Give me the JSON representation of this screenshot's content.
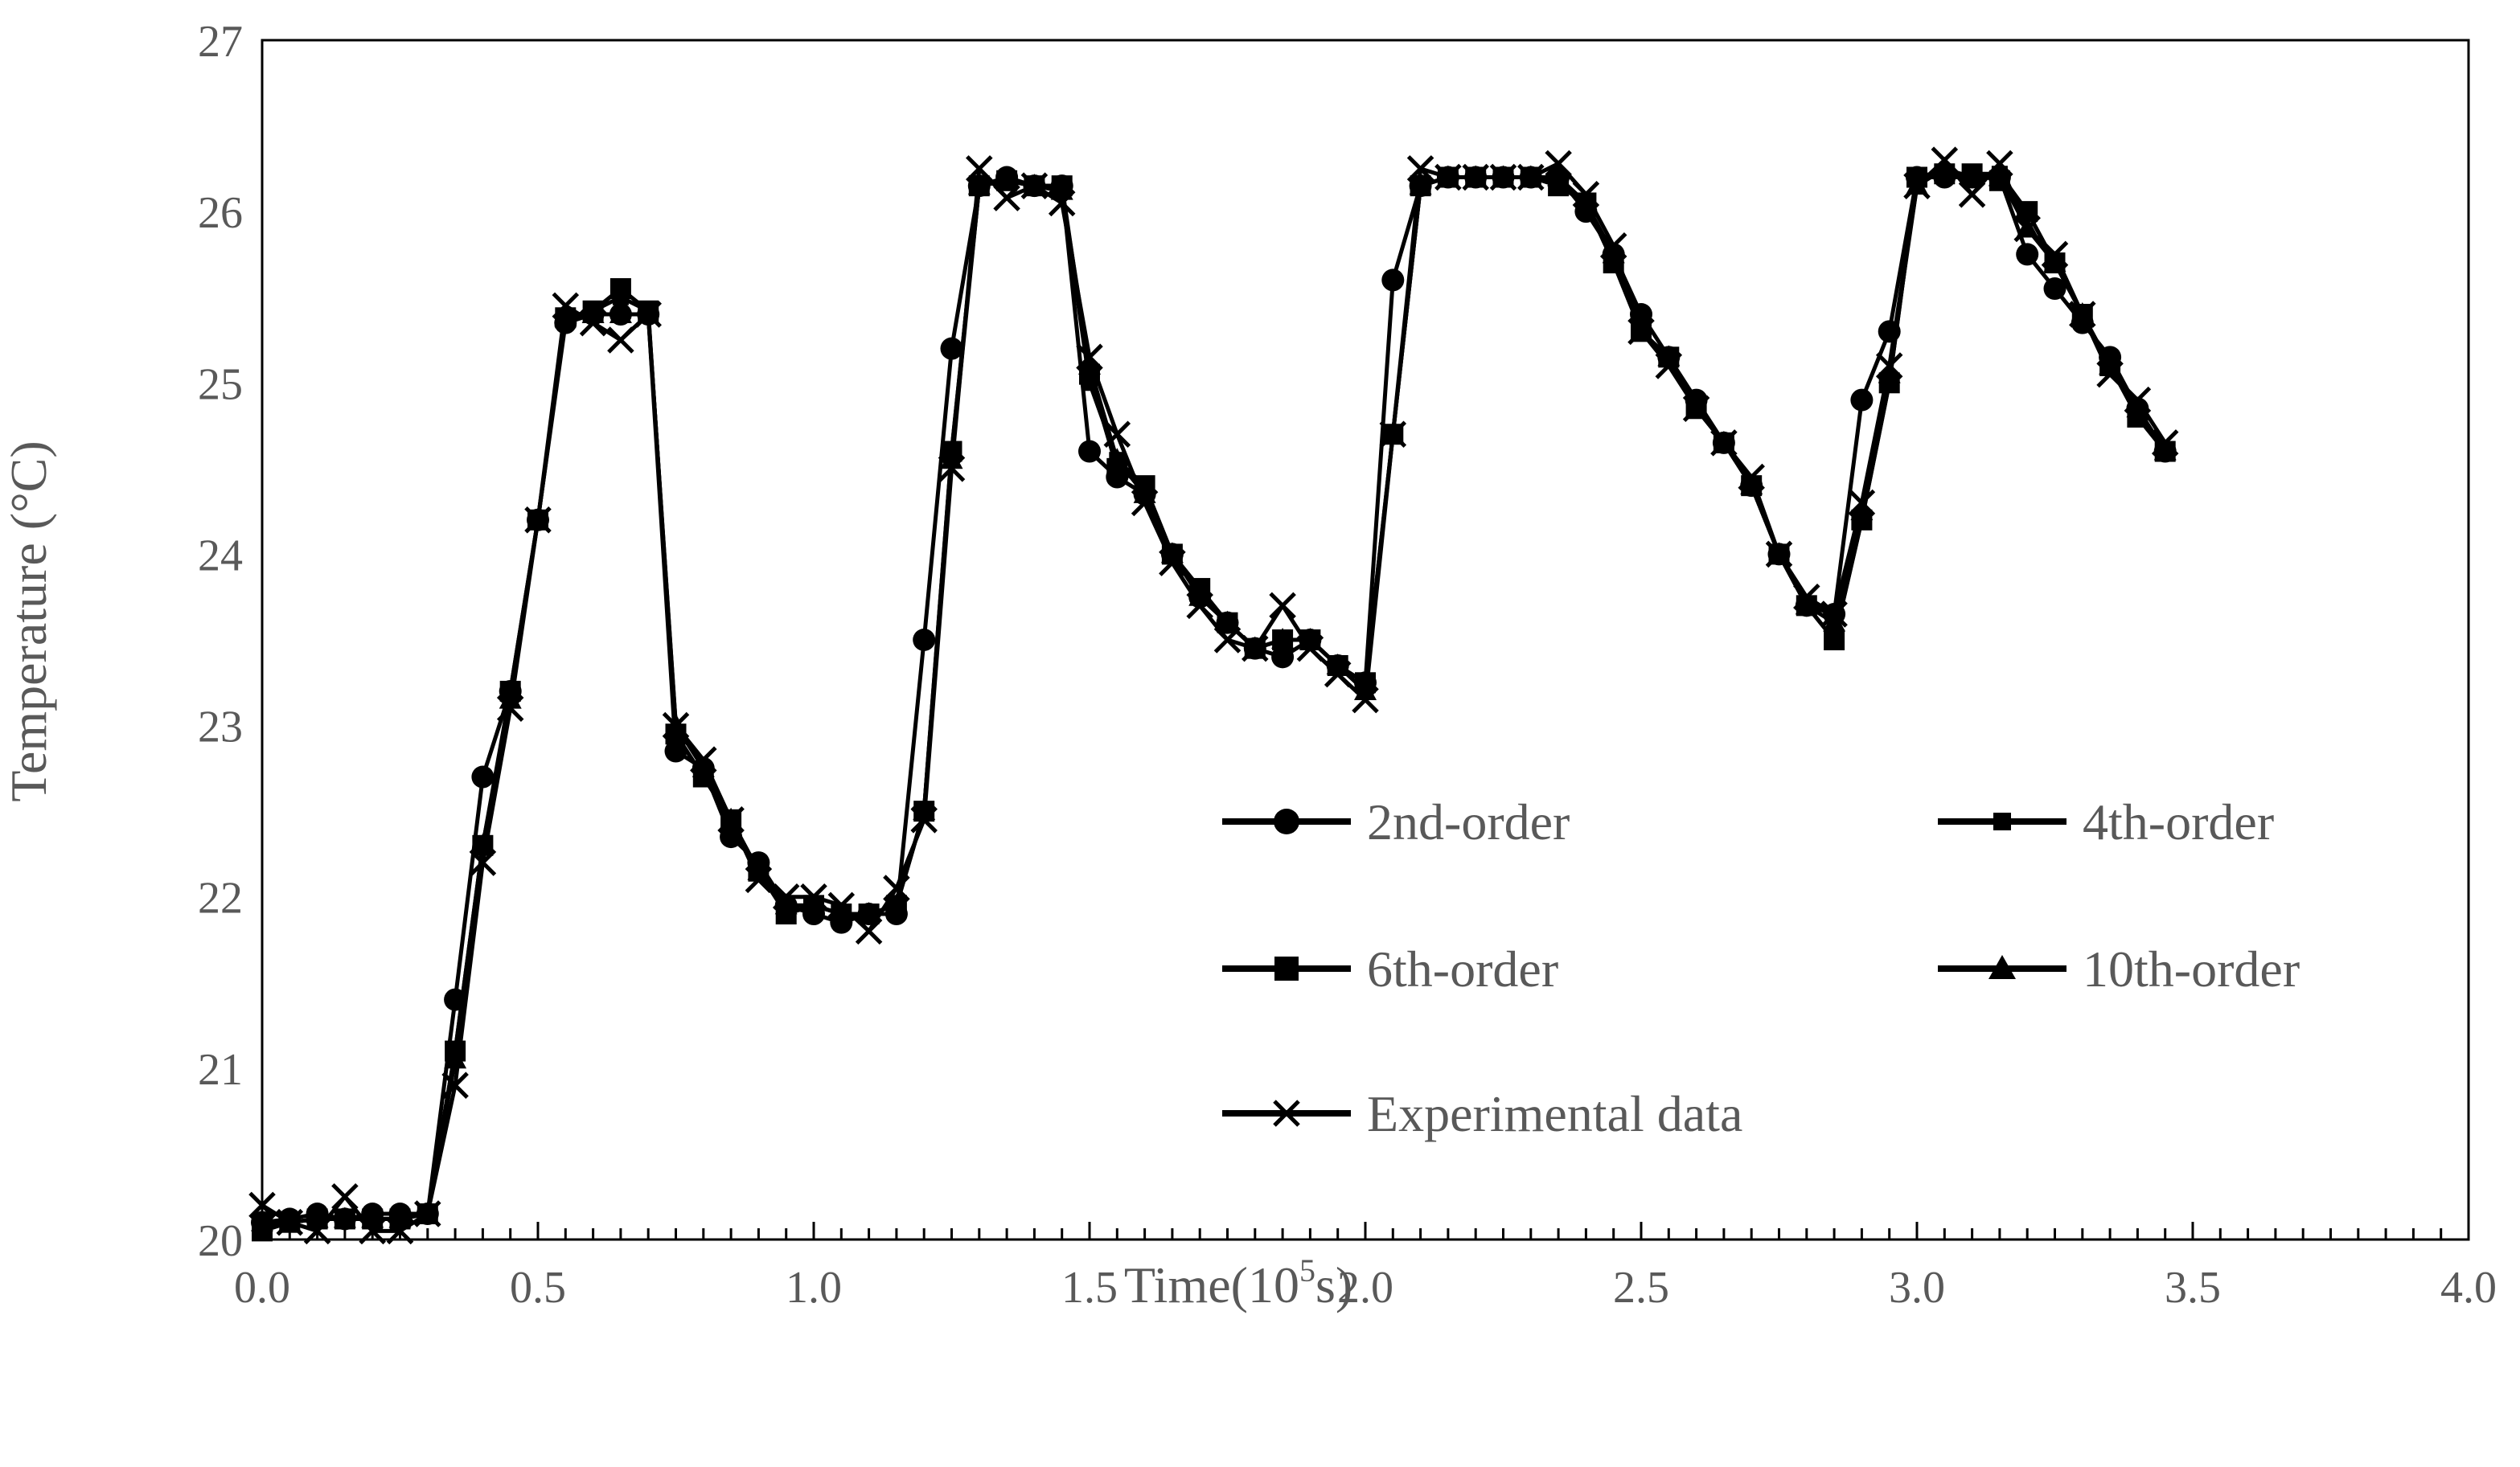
{
  "chart_data": {
    "type": "line",
    "title": "",
    "xlabel": "Time(10",
    "xlabel_sup": "5",
    "xlabel_suffix": "s)",
    "ylabel": "Temperature (°C)",
    "xlim": [
      0.0,
      4.0
    ],
    "ylim": [
      20,
      27
    ],
    "x_ticks": [
      "0.0",
      "0.5",
      "1.0",
      "1.5",
      "2.0",
      "2.5",
      "3.0",
      "3.5",
      "4.0"
    ],
    "y_ticks": [
      "20",
      "21",
      "22",
      "23",
      "24",
      "25",
      "26",
      "27"
    ],
    "x_minor_step": 0.05,
    "grid": false,
    "legend_position": "center-right",
    "series": [
      {
        "name": "2nd-order",
        "marker": "circle",
        "x": [
          0.0,
          0.05,
          0.1,
          0.15,
          0.2,
          0.25,
          0.3,
          0.35,
          0.4,
          0.45,
          0.5,
          0.55,
          0.6,
          0.65,
          0.7,
          0.75,
          0.8,
          0.85,
          0.9,
          0.95,
          1.0,
          1.05,
          1.1,
          1.15,
          1.2,
          1.25,
          1.3,
          1.35,
          1.4,
          1.45,
          1.5,
          1.55,
          1.6,
          1.65,
          1.7,
          1.75,
          1.8,
          1.85,
          1.9,
          1.95,
          2.0,
          2.05,
          2.1,
          2.15,
          2.2,
          2.25,
          2.3,
          2.35,
          2.4,
          2.45,
          2.5,
          2.55,
          2.6,
          2.65,
          2.7,
          2.75,
          2.8,
          2.85,
          2.9,
          2.95,
          3.0,
          3.05,
          3.1,
          3.15,
          3.2,
          3.25,
          3.3,
          3.35,
          3.4,
          3.45
        ],
        "y": [
          20.1,
          20.12,
          20.15,
          20.12,
          20.15,
          20.15,
          20.15,
          21.4,
          22.7,
          23.2,
          24.2,
          25.35,
          25.4,
          25.4,
          25.4,
          22.85,
          22.75,
          22.35,
          22.2,
          21.95,
          21.9,
          21.85,
          21.9,
          21.9,
          23.5,
          25.2,
          26.15,
          26.2,
          26.15,
          26.15,
          24.6,
          24.45,
          24.35,
          24.0,
          23.75,
          23.6,
          23.45,
          23.4,
          23.5,
          23.35,
          23.25,
          25.6,
          26.15,
          26.2,
          26.2,
          26.2,
          26.2,
          26.2,
          26.0,
          25.75,
          25.4,
          25.15,
          24.9,
          24.65,
          24.4,
          24.0,
          23.7,
          23.65,
          24.9,
          25.3,
          26.2,
          26.2,
          26.2,
          26.2,
          25.75,
          25.55,
          25.35,
          25.15,
          24.85,
          24.6
        ]
      },
      {
        "name": "4th-order",
        "marker": "small-square",
        "x": [
          0.0,
          0.05,
          0.1,
          0.15,
          0.2,
          0.25,
          0.3,
          0.35,
          0.4,
          0.45,
          0.5,
          0.55,
          0.6,
          0.65,
          0.7,
          0.75,
          0.8,
          0.85,
          0.9,
          0.95,
          1.0,
          1.05,
          1.1,
          1.15,
          1.2,
          1.25,
          1.3,
          1.35,
          1.4,
          1.45,
          1.5,
          1.55,
          1.6,
          1.65,
          1.7,
          1.75,
          1.8,
          1.85,
          1.9,
          1.95,
          2.0,
          2.05,
          2.1,
          2.15,
          2.2,
          2.25,
          2.3,
          2.35,
          2.4,
          2.45,
          2.5,
          2.55,
          2.6,
          2.65,
          2.7,
          2.75,
          2.8,
          2.85,
          2.9,
          2.95,
          3.0,
          3.05,
          3.1,
          3.15,
          3.2,
          3.25,
          3.3,
          3.35,
          3.4,
          3.45
        ],
        "y": [
          20.08,
          20.1,
          20.12,
          20.12,
          20.12,
          20.12,
          20.15,
          21.1,
          22.3,
          23.15,
          24.2,
          25.38,
          25.42,
          25.5,
          25.42,
          22.95,
          22.7,
          22.45,
          22.15,
          21.95,
          21.95,
          21.9,
          21.9,
          21.95,
          22.5,
          24.6,
          26.15,
          26.18,
          26.15,
          26.12,
          25.0,
          24.55,
          24.4,
          24.0,
          23.8,
          23.6,
          23.45,
          23.5,
          23.5,
          23.35,
          23.25,
          24.7,
          26.15,
          26.2,
          26.2,
          26.2,
          26.2,
          26.18,
          26.05,
          25.7,
          25.3,
          25.15,
          24.85,
          24.65,
          24.4,
          24.0,
          23.7,
          23.5,
          24.2,
          25.0,
          26.2,
          26.2,
          26.22,
          26.22,
          26.0,
          25.7,
          25.4,
          25.1,
          24.8,
          24.6
        ]
      },
      {
        "name": "6th-order",
        "marker": "square",
        "x": [
          0.0,
          0.05,
          0.1,
          0.15,
          0.2,
          0.25,
          0.3,
          0.35,
          0.4,
          0.45,
          0.5,
          0.55,
          0.6,
          0.65,
          0.7,
          0.75,
          0.8,
          0.85,
          0.9,
          0.95,
          1.0,
          1.05,
          1.1,
          1.15,
          1.2,
          1.25,
          1.3,
          1.35,
          1.4,
          1.45,
          1.5,
          1.55,
          1.6,
          1.65,
          1.7,
          1.75,
          1.8,
          1.85,
          1.9,
          1.95,
          2.0,
          2.05,
          2.1,
          2.15,
          2.2,
          2.25,
          2.3,
          2.35,
          2.4,
          2.45,
          2.5,
          2.55,
          2.6,
          2.65,
          2.7,
          2.75,
          2.8,
          2.85,
          2.9,
          2.95,
          3.0,
          3.05,
          3.1,
          3.15,
          3.2,
          3.25,
          3.3,
          3.35,
          3.4,
          3.45
        ],
        "y": [
          20.05,
          20.1,
          20.12,
          20.12,
          20.12,
          20.12,
          20.15,
          21.1,
          22.3,
          23.2,
          24.2,
          25.38,
          25.42,
          25.55,
          25.42,
          22.95,
          22.7,
          22.45,
          22.15,
          21.9,
          21.95,
          21.9,
          21.9,
          21.95,
          22.5,
          24.6,
          26.15,
          26.18,
          26.15,
          26.15,
          25.05,
          24.5,
          24.4,
          24.0,
          23.8,
          23.6,
          23.45,
          23.5,
          23.5,
          23.35,
          23.25,
          24.7,
          26.15,
          26.2,
          26.2,
          26.2,
          26.2,
          26.15,
          26.05,
          25.7,
          25.3,
          25.15,
          24.85,
          24.65,
          24.4,
          24.0,
          23.7,
          23.5,
          24.2,
          25.0,
          26.2,
          26.22,
          26.22,
          26.18,
          26.0,
          25.7,
          25.4,
          25.1,
          24.8,
          24.6
        ]
      },
      {
        "name": "10th-order",
        "marker": "triangle",
        "x": [
          0.0,
          0.05,
          0.1,
          0.15,
          0.2,
          0.25,
          0.3,
          0.35,
          0.4,
          0.45,
          0.5,
          0.55,
          0.6,
          0.65,
          0.7,
          0.75,
          0.8,
          0.85,
          0.9,
          0.95,
          1.0,
          1.05,
          1.1,
          1.15,
          1.2,
          1.25,
          1.3,
          1.35,
          1.4,
          1.45,
          1.5,
          1.55,
          1.6,
          1.65,
          1.7,
          1.75,
          1.8,
          1.85,
          1.9,
          1.95,
          2.0,
          2.05,
          2.1,
          2.15,
          2.2,
          2.25,
          2.3,
          2.35,
          2.4,
          2.45,
          2.5,
          2.55,
          2.6,
          2.65,
          2.7,
          2.75,
          2.8,
          2.85,
          2.9,
          2.95,
          3.0,
          3.05,
          3.1,
          3.15,
          3.2,
          3.25,
          3.3,
          3.35,
          3.4,
          3.45
        ],
        "y": [
          20.1,
          20.1,
          20.12,
          20.12,
          20.12,
          20.12,
          20.15,
          21.05,
          22.3,
          23.15,
          24.2,
          25.38,
          25.4,
          25.4,
          25.4,
          23.0,
          22.75,
          22.45,
          22.15,
          21.95,
          21.95,
          21.9,
          21.9,
          21.95,
          22.5,
          24.55,
          26.15,
          26.18,
          26.15,
          26.12,
          25.1,
          24.55,
          24.35,
          24.0,
          23.75,
          23.6,
          23.45,
          23.5,
          23.5,
          23.35,
          23.2,
          24.7,
          26.15,
          26.2,
          26.2,
          26.2,
          26.2,
          26.2,
          26.05,
          25.75,
          25.3,
          25.15,
          24.85,
          24.65,
          24.4,
          24.0,
          23.7,
          23.6,
          24.25,
          25.05,
          26.15,
          26.25,
          26.2,
          26.2,
          25.9,
          25.7,
          25.4,
          25.1,
          24.85,
          24.6
        ]
      },
      {
        "name": "Experimental data",
        "marker": "cross",
        "x": [
          0.0,
          0.05,
          0.1,
          0.15,
          0.2,
          0.25,
          0.3,
          0.35,
          0.4,
          0.45,
          0.5,
          0.55,
          0.6,
          0.65,
          0.7,
          0.75,
          0.8,
          0.85,
          0.9,
          0.95,
          1.0,
          1.05,
          1.1,
          1.15,
          1.2,
          1.25,
          1.3,
          1.35,
          1.4,
          1.45,
          1.5,
          1.55,
          1.6,
          1.65,
          1.7,
          1.75,
          1.8,
          1.85,
          1.9,
          1.95,
          2.0,
          2.05,
          2.1,
          2.15,
          2.2,
          2.25,
          2.3,
          2.35,
          2.4,
          2.45,
          2.5,
          2.55,
          2.6,
          2.65,
          2.7,
          2.75,
          2.8,
          2.85,
          2.9,
          2.95,
          3.0,
          3.05,
          3.1,
          3.15,
          3.2,
          3.25,
          3.3,
          3.35,
          3.4,
          3.45
        ],
        "y": [
          20.2,
          20.1,
          20.05,
          20.25,
          20.05,
          20.05,
          20.15,
          20.9,
          22.2,
          23.1,
          24.2,
          25.45,
          25.35,
          25.25,
          25.4,
          23.0,
          22.8,
          22.45,
          22.1,
          22.0,
          22.0,
          21.95,
          21.8,
          22.05,
          22.45,
          24.5,
          26.25,
          26.08,
          26.15,
          26.05,
          25.15,
          24.7,
          24.3,
          23.95,
          23.7,
          23.5,
          23.45,
          23.7,
          23.45,
          23.3,
          23.15,
          24.7,
          26.25,
          26.2,
          26.2,
          26.2,
          26.2,
          26.28,
          26.1,
          25.8,
          25.3,
          25.1,
          24.85,
          24.65,
          24.45,
          24.0,
          23.75,
          23.65,
          24.3,
          25.1,
          26.15,
          26.3,
          26.1,
          26.28,
          25.9,
          25.75,
          25.4,
          25.05,
          24.9,
          24.65
        ]
      }
    ]
  }
}
